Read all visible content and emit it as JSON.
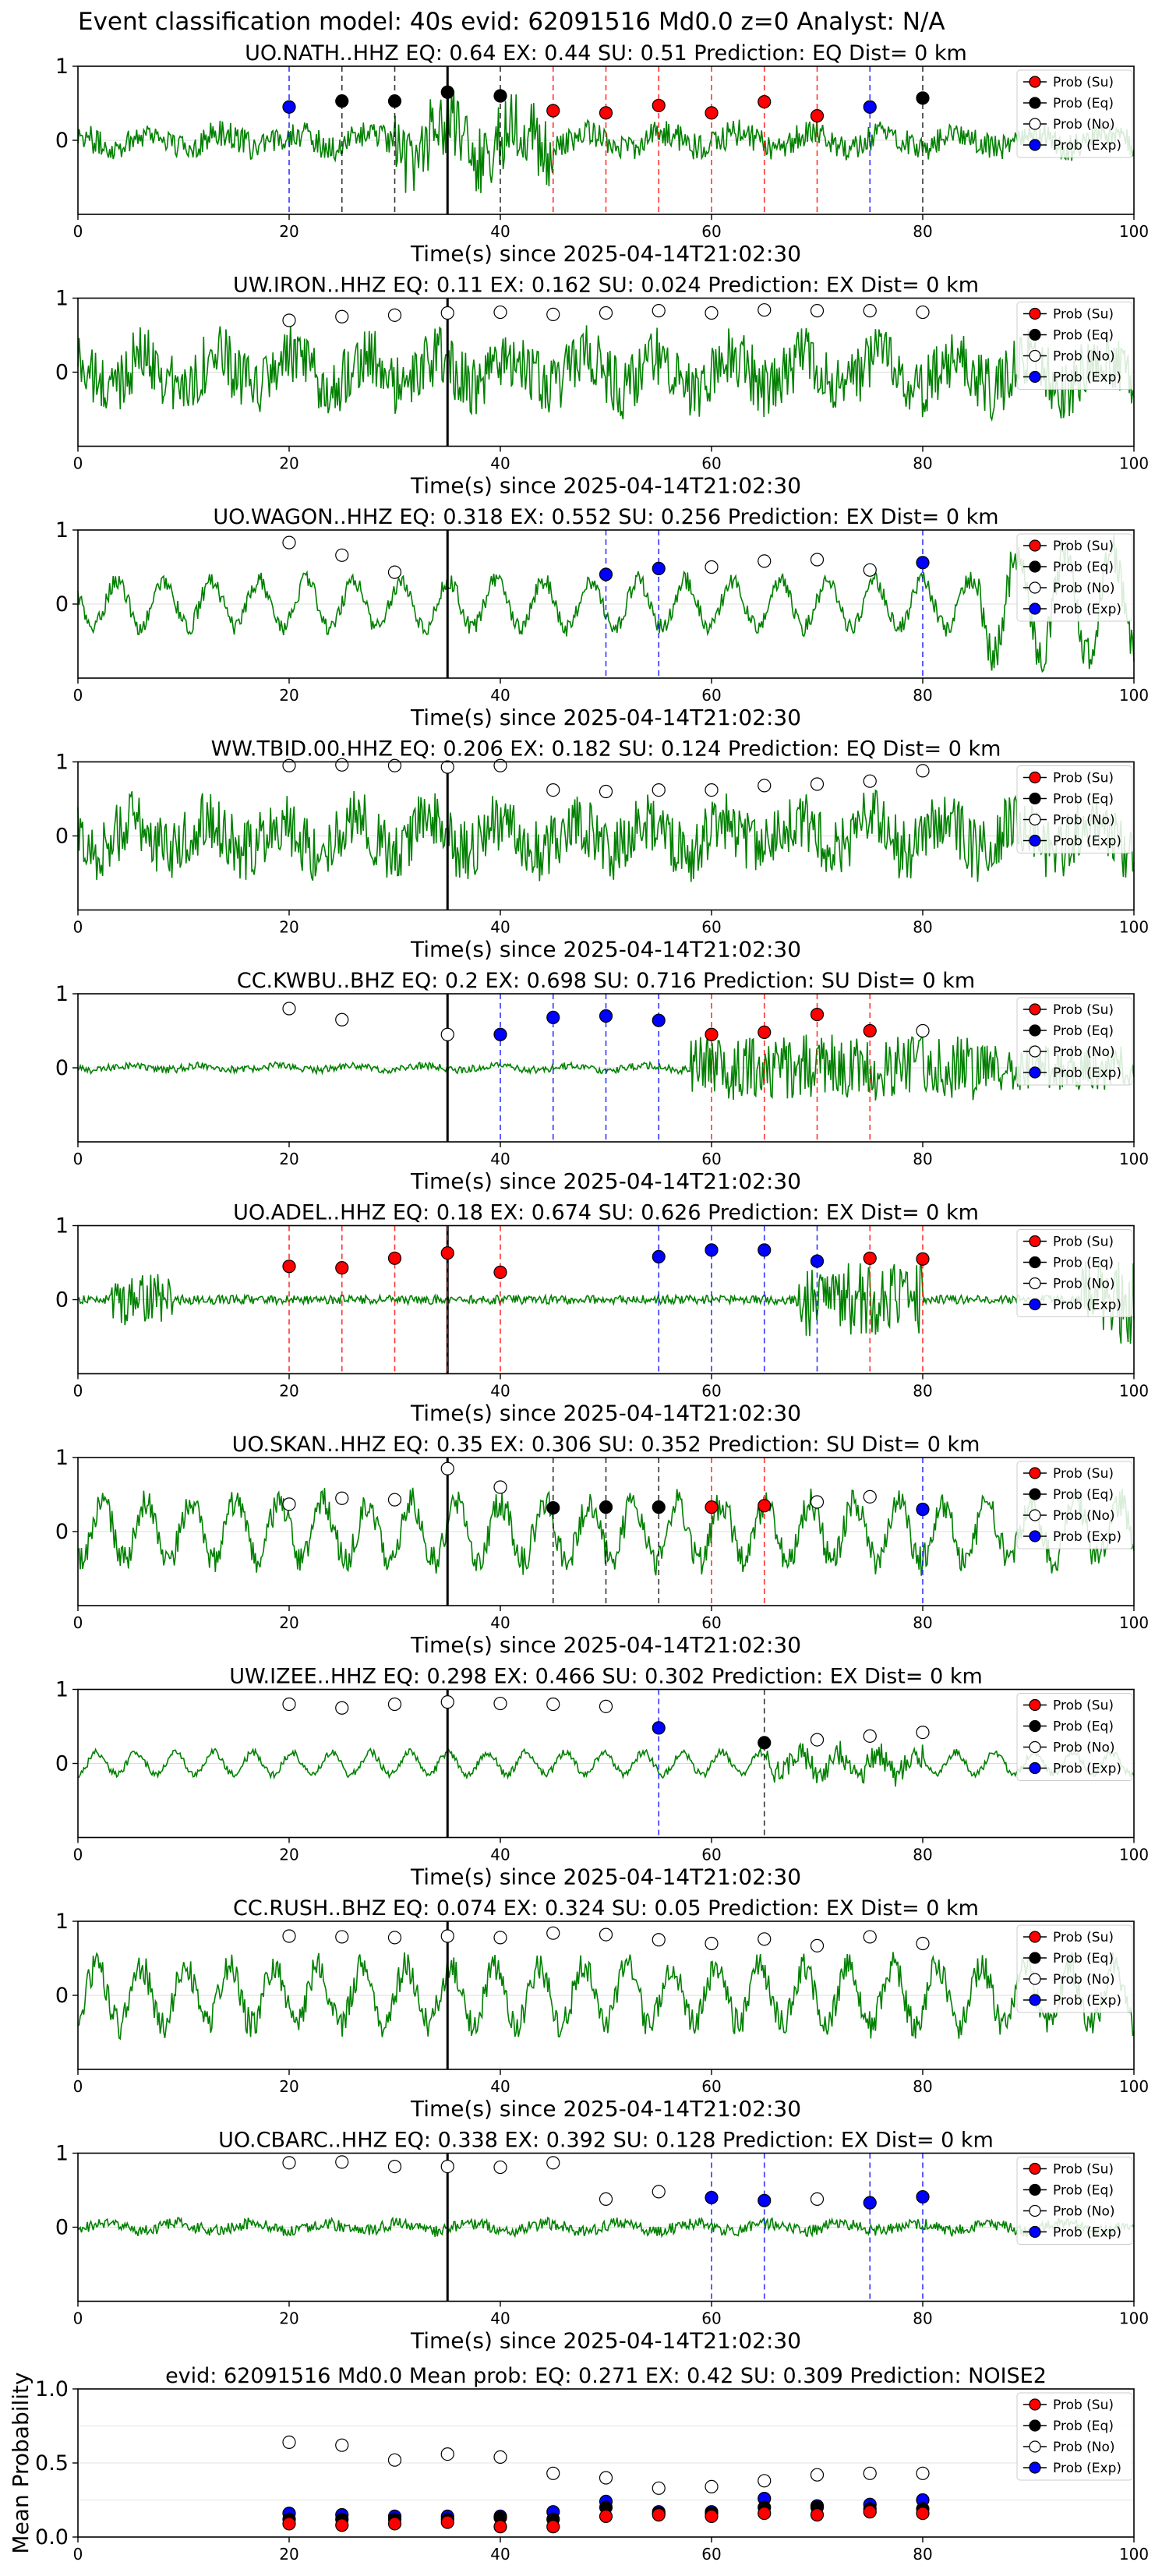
{
  "figure": {
    "title": "Event classification model: 40s evid: 62091516 Md0.0 z=0 Analyst: N/A"
  },
  "colors": {
    "trace": "#008000",
    "su": "#ff0000",
    "eq": "#000000",
    "noise": "#ffffff",
    "exp": "#0000ff",
    "axis": "#000000"
  },
  "legend": {
    "items": [
      {
        "label": "Prob (Su)",
        "key": "su"
      },
      {
        "label": "Prob (Eq)",
        "key": "eq"
      },
      {
        "label": "Prob (No)",
        "key": "noise"
      },
      {
        "label": "Prob (Exp)",
        "key": "exp"
      }
    ],
    "placement": "top-right"
  },
  "chart_data": [
    {
      "type": "line",
      "title": "UO.NATH..HHZ   EQ: 0.64  EX: 0.44  SU: 0.51   Prediction: EQ    Dist= 0 km",
      "xlabel": "Time(s) since 2025-04-14T21:02:30",
      "xlim": [
        0,
        100
      ],
      "ylim": [
        -1,
        1
      ],
      "xticks": [
        "0",
        "20",
        "40",
        "60",
        "80",
        "100"
      ],
      "yticks": [
        "1",
        "0"
      ],
      "waveform": "noisy-mid",
      "origin_line_x": 35,
      "points": [
        {
          "x": 20,
          "y": 0.45,
          "cls": "exp"
        },
        {
          "x": 25,
          "y": 0.53,
          "cls": "eq"
        },
        {
          "x": 30,
          "y": 0.53,
          "cls": "eq"
        },
        {
          "x": 35,
          "y": 0.65,
          "cls": "eq"
        },
        {
          "x": 40,
          "y": 0.6,
          "cls": "eq"
        },
        {
          "x": 45,
          "y": 0.4,
          "cls": "su"
        },
        {
          "x": 50,
          "y": 0.37,
          "cls": "su"
        },
        {
          "x": 55,
          "y": 0.47,
          "cls": "su"
        },
        {
          "x": 60,
          "y": 0.37,
          "cls": "su"
        },
        {
          "x": 65,
          "y": 0.52,
          "cls": "su"
        },
        {
          "x": 70,
          "y": 0.33,
          "cls": "su"
        },
        {
          "x": 75,
          "y": 0.45,
          "cls": "exp"
        },
        {
          "x": 80,
          "y": 0.57,
          "cls": "eq"
        }
      ]
    },
    {
      "type": "line",
      "title": "UW.IRON..HHZ   EQ: 0.11  EX: 0.162  SU: 0.024   Prediction: EX    Dist= 0 km",
      "xlabel": "Time(s) since 2025-04-14T21:02:30",
      "xlim": [
        0,
        100
      ],
      "ylim": [
        -1,
        1
      ],
      "xticks": [
        "0",
        "20",
        "40",
        "60",
        "80",
        "100"
      ],
      "yticks": [
        "1",
        "0"
      ],
      "waveform": "noisy-high",
      "origin_line_x": 35,
      "points": [
        {
          "x": 20,
          "y": 0.7,
          "cls": "noise"
        },
        {
          "x": 25,
          "y": 0.75,
          "cls": "noise"
        },
        {
          "x": 30,
          "y": 0.77,
          "cls": "noise"
        },
        {
          "x": 35,
          "y": 0.8,
          "cls": "noise"
        },
        {
          "x": 40,
          "y": 0.81,
          "cls": "noise"
        },
        {
          "x": 45,
          "y": 0.78,
          "cls": "noise"
        },
        {
          "x": 50,
          "y": 0.8,
          "cls": "noise"
        },
        {
          "x": 55,
          "y": 0.83,
          "cls": "noise"
        },
        {
          "x": 60,
          "y": 0.8,
          "cls": "noise"
        },
        {
          "x": 65,
          "y": 0.84,
          "cls": "noise"
        },
        {
          "x": 70,
          "y": 0.83,
          "cls": "noise"
        },
        {
          "x": 75,
          "y": 0.83,
          "cls": "noise"
        },
        {
          "x": 80,
          "y": 0.81,
          "cls": "noise"
        }
      ]
    },
    {
      "type": "line",
      "title": "UO.WAGON..HHZ   EQ: 0.318  EX: 0.552  SU: 0.256   Prediction: EX    Dist= 0 km",
      "xlabel": "Time(s) since 2025-04-14T21:02:30",
      "xlim": [
        0,
        100
      ],
      "ylim": [
        -1,
        1
      ],
      "xticks": [
        "0",
        "20",
        "40",
        "60",
        "80",
        "100"
      ],
      "yticks": [
        "1",
        "0"
      ],
      "waveform": "wavy",
      "origin_line_x": 35,
      "points": [
        {
          "x": 20,
          "y": 0.83,
          "cls": "noise"
        },
        {
          "x": 25,
          "y": 0.66,
          "cls": "noise"
        },
        {
          "x": 30,
          "y": 0.43,
          "cls": "noise"
        },
        {
          "x": 50,
          "y": 0.4,
          "cls": "exp"
        },
        {
          "x": 55,
          "y": 0.48,
          "cls": "exp"
        },
        {
          "x": 60,
          "y": 0.5,
          "cls": "noise"
        },
        {
          "x": 65,
          "y": 0.58,
          "cls": "noise"
        },
        {
          "x": 70,
          "y": 0.6,
          "cls": "noise"
        },
        {
          "x": 75,
          "y": 0.46,
          "cls": "noise"
        },
        {
          "x": 80,
          "y": 0.56,
          "cls": "exp"
        }
      ]
    },
    {
      "type": "line",
      "title": "WW.TBID.00.HHZ   EQ: 0.206  EX: 0.182  SU: 0.124   Prediction: EQ    Dist= 0 km",
      "xlabel": "Time(s) since 2025-04-14T21:02:30",
      "xlim": [
        0,
        100
      ],
      "ylim": [
        -1,
        1
      ],
      "xticks": [
        "0",
        "20",
        "40",
        "60",
        "80",
        "100"
      ],
      "yticks": [
        "1",
        "0"
      ],
      "waveform": "noisy-high",
      "origin_line_x": 35,
      "points": [
        {
          "x": 20,
          "y": 0.95,
          "cls": "noise"
        },
        {
          "x": 25,
          "y": 0.96,
          "cls": "noise"
        },
        {
          "x": 30,
          "y": 0.95,
          "cls": "noise"
        },
        {
          "x": 35,
          "y": 0.93,
          "cls": "noise"
        },
        {
          "x": 40,
          "y": 0.95,
          "cls": "noise"
        },
        {
          "x": 45,
          "y": 0.62,
          "cls": "noise"
        },
        {
          "x": 50,
          "y": 0.6,
          "cls": "noise"
        },
        {
          "x": 55,
          "y": 0.62,
          "cls": "noise"
        },
        {
          "x": 60,
          "y": 0.62,
          "cls": "noise"
        },
        {
          "x": 65,
          "y": 0.68,
          "cls": "noise"
        },
        {
          "x": 70,
          "y": 0.7,
          "cls": "noise"
        },
        {
          "x": 75,
          "y": 0.74,
          "cls": "noise"
        },
        {
          "x": 80,
          "y": 0.88,
          "cls": "noise"
        }
      ]
    },
    {
      "type": "line",
      "title": "CC.KWBU..BHZ   EQ: 0.2  EX: 0.698  SU: 0.716   Prediction: SU    Dist= 0 km",
      "xlabel": "Time(s) since 2025-04-14T21:02:30",
      "xlim": [
        0,
        100
      ],
      "ylim": [
        -1,
        1
      ],
      "xticks": [
        "0",
        "20",
        "40",
        "60",
        "80",
        "100"
      ],
      "yticks": [
        "1",
        "0"
      ],
      "waveform": "quiet-burst-late",
      "origin_line_x": 35,
      "points": [
        {
          "x": 20,
          "y": 0.8,
          "cls": "noise"
        },
        {
          "x": 25,
          "y": 0.65,
          "cls": "noise"
        },
        {
          "x": 35,
          "y": 0.45,
          "cls": "noise"
        },
        {
          "x": 40,
          "y": 0.45,
          "cls": "exp"
        },
        {
          "x": 45,
          "y": 0.68,
          "cls": "exp"
        },
        {
          "x": 50,
          "y": 0.7,
          "cls": "exp"
        },
        {
          "x": 55,
          "y": 0.64,
          "cls": "exp"
        },
        {
          "x": 60,
          "y": 0.45,
          "cls": "su"
        },
        {
          "x": 65,
          "y": 0.48,
          "cls": "su"
        },
        {
          "x": 70,
          "y": 0.72,
          "cls": "su"
        },
        {
          "x": 75,
          "y": 0.5,
          "cls": "su"
        },
        {
          "x": 80,
          "y": 0.5,
          "cls": "noise"
        }
      ]
    },
    {
      "type": "line",
      "title": "UO.ADEL..HHZ   EQ: 0.18  EX: 0.674  SU: 0.626   Prediction: EX    Dist= 0 km",
      "xlabel": "Time(s) since 2025-04-14T21:02:30",
      "xlim": [
        0,
        100
      ],
      "ylim": [
        -1,
        1
      ],
      "xticks": [
        "0",
        "20",
        "40",
        "60",
        "80",
        "100"
      ],
      "yticks": [
        "1",
        "0"
      ],
      "waveform": "quiet-burst-early-late",
      "origin_line_x": 35,
      "points": [
        {
          "x": 20,
          "y": 0.45,
          "cls": "su"
        },
        {
          "x": 25,
          "y": 0.43,
          "cls": "su"
        },
        {
          "x": 30,
          "y": 0.56,
          "cls": "su"
        },
        {
          "x": 35,
          "y": 0.63,
          "cls": "su"
        },
        {
          "x": 40,
          "y": 0.37,
          "cls": "su"
        },
        {
          "x": 55,
          "y": 0.58,
          "cls": "exp"
        },
        {
          "x": 60,
          "y": 0.67,
          "cls": "exp"
        },
        {
          "x": 65,
          "y": 0.67,
          "cls": "exp"
        },
        {
          "x": 70,
          "y": 0.52,
          "cls": "exp"
        },
        {
          "x": 75,
          "y": 0.56,
          "cls": "su"
        },
        {
          "x": 80,
          "y": 0.55,
          "cls": "su"
        }
      ]
    },
    {
      "type": "line",
      "title": "UO.SKAN..HHZ   EQ: 0.35  EX: 0.306  SU: 0.352   Prediction: SU    Dist= 0 km",
      "xlabel": "Time(s) since 2025-04-14T21:02:30",
      "xlim": [
        0,
        100
      ],
      "ylim": [
        -1,
        1
      ],
      "xticks": [
        "0",
        "20",
        "40",
        "60",
        "80",
        "100"
      ],
      "yticks": [
        "1",
        "0"
      ],
      "waveform": "wavy-noisy",
      "origin_line_x": 35,
      "points": [
        {
          "x": 20,
          "y": 0.37,
          "cls": "noise"
        },
        {
          "x": 25,
          "y": 0.45,
          "cls": "noise"
        },
        {
          "x": 30,
          "y": 0.43,
          "cls": "noise"
        },
        {
          "x": 35,
          "y": 0.85,
          "cls": "noise"
        },
        {
          "x": 40,
          "y": 0.6,
          "cls": "noise"
        },
        {
          "x": 45,
          "y": 0.32,
          "cls": "eq"
        },
        {
          "x": 50,
          "y": 0.33,
          "cls": "eq"
        },
        {
          "x": 55,
          "y": 0.33,
          "cls": "eq"
        },
        {
          "x": 60,
          "y": 0.33,
          "cls": "su"
        },
        {
          "x": 65,
          "y": 0.35,
          "cls": "su"
        },
        {
          "x": 70,
          "y": 0.4,
          "cls": "noise"
        },
        {
          "x": 75,
          "y": 0.47,
          "cls": "noise"
        },
        {
          "x": 80,
          "y": 0.3,
          "cls": "exp"
        }
      ]
    },
    {
      "type": "line",
      "title": "UW.IZEE..HHZ   EQ: 0.298  EX: 0.466  SU: 0.302   Prediction: EX    Dist= 0 km",
      "xlabel": "Time(s) since 2025-04-14T21:02:30",
      "xlim": [
        0,
        100
      ],
      "ylim": [
        -1,
        1
      ],
      "xticks": [
        "0",
        "20",
        "40",
        "60",
        "80",
        "100"
      ],
      "yticks": [
        "1",
        "0"
      ],
      "waveform": "gentle",
      "origin_line_x": 35,
      "points": [
        {
          "x": 20,
          "y": 0.8,
          "cls": "noise"
        },
        {
          "x": 25,
          "y": 0.75,
          "cls": "noise"
        },
        {
          "x": 30,
          "y": 0.8,
          "cls": "noise"
        },
        {
          "x": 35,
          "y": 0.83,
          "cls": "noise"
        },
        {
          "x": 40,
          "y": 0.81,
          "cls": "noise"
        },
        {
          "x": 45,
          "y": 0.8,
          "cls": "noise"
        },
        {
          "x": 50,
          "y": 0.77,
          "cls": "noise"
        },
        {
          "x": 55,
          "y": 0.48,
          "cls": "exp"
        },
        {
          "x": 65,
          "y": 0.28,
          "cls": "eq"
        },
        {
          "x": 70,
          "y": 0.32,
          "cls": "noise"
        },
        {
          "x": 75,
          "y": 0.37,
          "cls": "noise"
        },
        {
          "x": 80,
          "y": 0.42,
          "cls": "noise"
        }
      ]
    },
    {
      "type": "line",
      "title": "CC.RUSH..BHZ   EQ: 0.074  EX: 0.324  SU: 0.05   Prediction: EX    Dist= 0 km",
      "xlabel": "Time(s) since 2025-04-14T21:02:30",
      "xlim": [
        0,
        100
      ],
      "ylim": [
        -1,
        1
      ],
      "xticks": [
        "0",
        "20",
        "40",
        "60",
        "80",
        "100"
      ],
      "yticks": [
        "1",
        "0"
      ],
      "waveform": "wavy-noisy",
      "origin_line_x": 35,
      "points": [
        {
          "x": 20,
          "y": 0.8,
          "cls": "noise"
        },
        {
          "x": 25,
          "y": 0.79,
          "cls": "noise"
        },
        {
          "x": 30,
          "y": 0.78,
          "cls": "noise"
        },
        {
          "x": 35,
          "y": 0.8,
          "cls": "noise"
        },
        {
          "x": 40,
          "y": 0.78,
          "cls": "noise"
        },
        {
          "x": 45,
          "y": 0.84,
          "cls": "noise"
        },
        {
          "x": 50,
          "y": 0.82,
          "cls": "noise"
        },
        {
          "x": 55,
          "y": 0.75,
          "cls": "noise"
        },
        {
          "x": 60,
          "y": 0.7,
          "cls": "noise"
        },
        {
          "x": 65,
          "y": 0.76,
          "cls": "noise"
        },
        {
          "x": 70,
          "y": 0.67,
          "cls": "noise"
        },
        {
          "x": 75,
          "y": 0.79,
          "cls": "noise"
        },
        {
          "x": 80,
          "y": 0.7,
          "cls": "noise"
        }
      ]
    },
    {
      "type": "line",
      "title": "UO.CBARC..HHZ   EQ: 0.338  EX: 0.392  SU: 0.128   Prediction: EX    Dist= 0 km",
      "xlabel": "Time(s) since 2025-04-14T21:02:30",
      "xlim": [
        0,
        100
      ],
      "ylim": [
        -1,
        1
      ],
      "xticks": [
        "0",
        "20",
        "40",
        "60",
        "80",
        "100"
      ],
      "yticks": [
        "1",
        "0"
      ],
      "waveform": "quiet",
      "origin_line_x": 35,
      "points": [
        {
          "x": 20,
          "y": 0.87,
          "cls": "noise"
        },
        {
          "x": 25,
          "y": 0.88,
          "cls": "noise"
        },
        {
          "x": 30,
          "y": 0.82,
          "cls": "noise"
        },
        {
          "x": 35,
          "y": 0.82,
          "cls": "noise"
        },
        {
          "x": 40,
          "y": 0.81,
          "cls": "noise"
        },
        {
          "x": 45,
          "y": 0.87,
          "cls": "noise"
        },
        {
          "x": 50,
          "y": 0.38,
          "cls": "noise"
        },
        {
          "x": 55,
          "y": 0.48,
          "cls": "noise"
        },
        {
          "x": 60,
          "y": 0.4,
          "cls": "exp"
        },
        {
          "x": 65,
          "y": 0.36,
          "cls": "exp"
        },
        {
          "x": 70,
          "y": 0.38,
          "cls": "noise"
        },
        {
          "x": 75,
          "y": 0.33,
          "cls": "exp"
        },
        {
          "x": 80,
          "y": 0.41,
          "cls": "exp"
        }
      ]
    },
    {
      "type": "scatter",
      "title": "evid: 62091516  Md0.0   Mean prob:   EQ: 0.271  EX: 0.42  SU: 0.309   Prediction: NOISE2",
      "ylabel": "Mean Probability",
      "xlim": [
        0,
        100
      ],
      "ylim": [
        0,
        1
      ],
      "xticks": [
        "0",
        "20",
        "40",
        "60",
        "80",
        "100"
      ],
      "yticks": [
        "1.0",
        "0.5",
        "0.0"
      ],
      "series": [
        {
          "name": "Prob (No)",
          "key": "noise",
          "x": [
            20,
            25,
            30,
            35,
            40,
            45,
            50,
            55,
            60,
            65,
            70,
            75,
            80
          ],
          "values": [
            0.64,
            0.62,
            0.52,
            0.56,
            0.54,
            0.43,
            0.4,
            0.33,
            0.34,
            0.38,
            0.42,
            0.43,
            0.43
          ]
        },
        {
          "name": "Prob (Exp)",
          "key": "exp",
          "x": [
            20,
            25,
            30,
            35,
            40,
            45,
            50,
            55,
            60,
            65,
            70,
            75,
            80
          ],
          "values": [
            0.16,
            0.15,
            0.14,
            0.14,
            0.14,
            0.17,
            0.24,
            0.17,
            0.17,
            0.26,
            0.21,
            0.22,
            0.25
          ]
        },
        {
          "name": "Prob (Eq)",
          "key": "eq",
          "x": [
            20,
            25,
            30,
            35,
            40,
            45,
            50,
            55,
            60,
            65,
            70,
            75,
            80
          ],
          "values": [
            0.12,
            0.12,
            0.12,
            0.12,
            0.13,
            0.12,
            0.2,
            0.16,
            0.16,
            0.2,
            0.2,
            0.19,
            0.19
          ]
        },
        {
          "name": "Prob (Su)",
          "key": "su",
          "x": [
            20,
            25,
            30,
            35,
            40,
            45,
            50,
            55,
            60,
            65,
            70,
            75,
            80
          ],
          "values": [
            0.09,
            0.08,
            0.09,
            0.1,
            0.07,
            0.07,
            0.14,
            0.15,
            0.14,
            0.16,
            0.15,
            0.17,
            0.16
          ]
        }
      ]
    }
  ]
}
